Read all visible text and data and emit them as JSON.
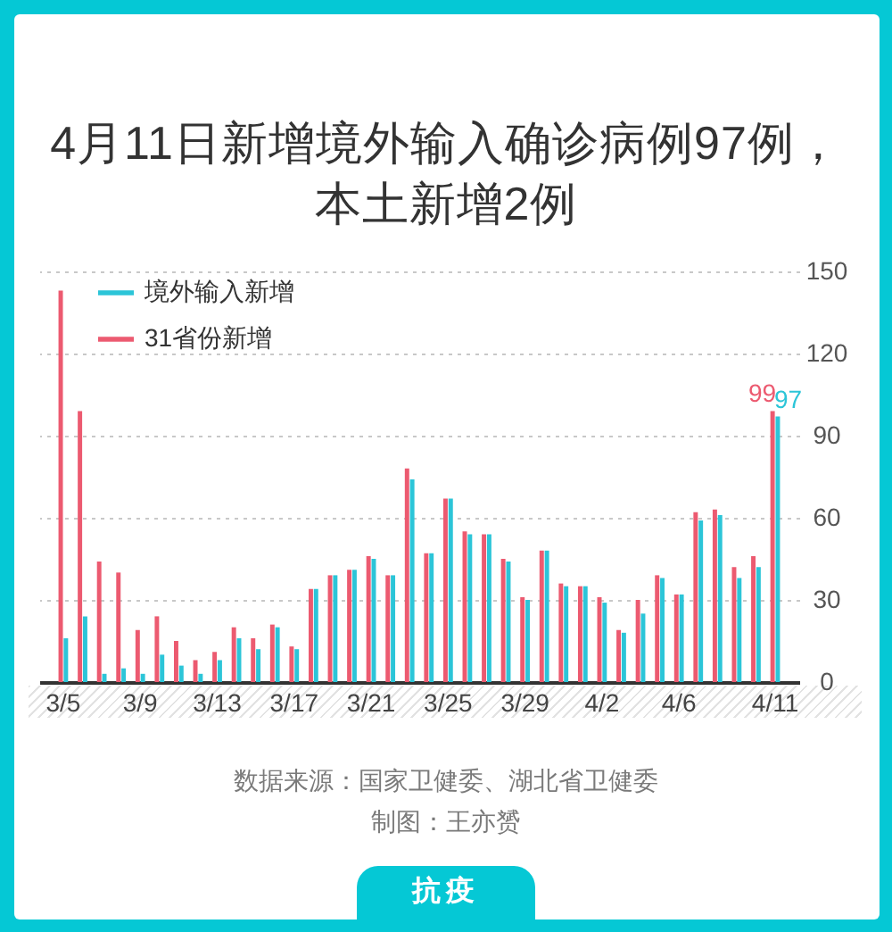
{
  "chart_data": {
    "type": "bar",
    "title": "4月11日新增境外输入确诊病例97例，本土新增2例",
    "categories": [
      "3/5",
      null,
      null,
      null,
      "3/9",
      null,
      null,
      null,
      "3/13",
      null,
      null,
      null,
      "3/17",
      null,
      null,
      null,
      "3/21",
      null,
      null,
      null,
      "3/25",
      null,
      null,
      null,
      "3/29",
      null,
      null,
      null,
      "4/2",
      null,
      null,
      null,
      "4/6",
      null,
      null,
      null,
      null,
      "4/11"
    ],
    "series": [
      {
        "name": "境外输入新增",
        "color": "#2cc5d8",
        "values": [
          16,
          24,
          3,
          5,
          3,
          10,
          6,
          3,
          8,
          16,
          12,
          20,
          12,
          34,
          39,
          41,
          45,
          39,
          74,
          47,
          67,
          54,
          54,
          44,
          30,
          48,
          35,
          35,
          29,
          18,
          25,
          38,
          32,
          59,
          61,
          38,
          42,
          97
        ],
        "value_labels": [
          null,
          null,
          null,
          null,
          null,
          null,
          null,
          null,
          null,
          null,
          null,
          null,
          null,
          null,
          null,
          null,
          null,
          null,
          null,
          null,
          null,
          null,
          null,
          null,
          null,
          null,
          null,
          null,
          null,
          null,
          null,
          null,
          null,
          null,
          null,
          null,
          null,
          "97"
        ]
      },
      {
        "name": "31省份新增",
        "color": "#ec5a70",
        "values": [
          143,
          99,
          44,
          40,
          19,
          24,
          15,
          8,
          11,
          20,
          16,
          21,
          13,
          34,
          39,
          41,
          46,
          39,
          78,
          47,
          67,
          55,
          54,
          45,
          31,
          48,
          36,
          35,
          31,
          19,
          30,
          39,
          32,
          62,
          63,
          42,
          46,
          99
        ],
        "value_labels": [
          null,
          null,
          null,
          null,
          null,
          null,
          null,
          null,
          null,
          null,
          null,
          null,
          null,
          null,
          null,
          null,
          null,
          null,
          null,
          null,
          null,
          null,
          null,
          null,
          null,
          null,
          null,
          null,
          null,
          null,
          null,
          null,
          null,
          null,
          null,
          null,
          null,
          "99"
        ]
      }
    ],
    "ylim": [
      0,
      150
    ],
    "yticks": [
      0,
      30,
      60,
      90,
      120,
      150
    ],
    "grid": "y",
    "legend": "top left",
    "annotations": [
      "数据来源：国家卫健委、湖北省卫健委",
      "制图：王亦赟",
      "抗疫"
    ]
  }
}
